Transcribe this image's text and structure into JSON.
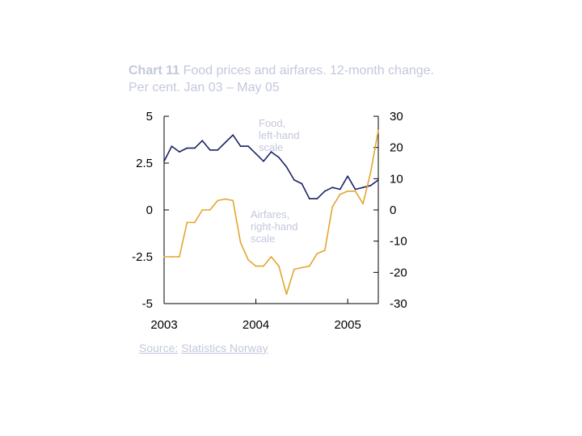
{
  "title": {
    "bold": "Chart 11",
    "rest": "Food prices and airfares. 12-month change. Per cent. Jan 03 – May 05"
  },
  "source": {
    "label": "Source:",
    "text": "Statistics Norway"
  },
  "colors": {
    "food": "#1a2466",
    "airfares": "#e3a52e",
    "faint_text": "#c3c8dc"
  },
  "chart_data": {
    "type": "line",
    "title": "Food prices and airfares. 12-month change. Per cent. Jan 03 – May 05",
    "x_tick_labels": [
      "2003",
      "2004",
      "2005"
    ],
    "x": [
      "Jan 03",
      "Feb 03",
      "Mar 03",
      "Apr 03",
      "May 03",
      "Jun 03",
      "Jul 03",
      "Aug 03",
      "Sep 03",
      "Oct 03",
      "Nov 03",
      "Dec 03",
      "Jan 04",
      "Feb 04",
      "Mar 04",
      "Apr 04",
      "May 04",
      "Jun 04",
      "Jul 04",
      "Aug 04",
      "Sep 04",
      "Oct 04",
      "Nov 04",
      "Dec 04",
      "Jan 05",
      "Feb 05",
      "Mar 05",
      "Apr 05",
      "May 05"
    ],
    "left_axis": {
      "ylim": [
        -5,
        5
      ],
      "ticks": [
        "5",
        "2.5",
        "0",
        "-2.5",
        "-5"
      ]
    },
    "right_axis": {
      "ylim": [
        -30,
        30
      ],
      "ticks": [
        "30",
        "20",
        "10",
        "0",
        "-10",
        "-20",
        "-30"
      ]
    },
    "grid": false,
    "series": [
      {
        "name": "Food",
        "label": [
          "Food,",
          "left-hand",
          "scale"
        ],
        "axis": "left",
        "values": [
          2.6,
          3.4,
          3.1,
          3.3,
          3.3,
          3.7,
          3.2,
          3.2,
          3.6,
          4.0,
          3.4,
          3.4,
          3.0,
          2.6,
          3.1,
          2.8,
          2.3,
          1.6,
          1.4,
          0.6,
          0.6,
          1.0,
          1.2,
          1.1,
          1.8,
          1.1,
          1.2,
          1.3,
          1.6
        ]
      },
      {
        "name": "Airfares",
        "label": [
          "Airfares,",
          "right-hand",
          "scale"
        ],
        "axis": "right",
        "values": [
          -15,
          -15,
          -15,
          -4,
          -4,
          0,
          0,
          3,
          3.5,
          3,
          -10.5,
          -16,
          -18,
          -18,
          -15,
          -18,
          -27,
          -19,
          -18.5,
          -18,
          -14,
          -13,
          1,
          5,
          6,
          6,
          2,
          12,
          25.5
        ]
      }
    ]
  }
}
